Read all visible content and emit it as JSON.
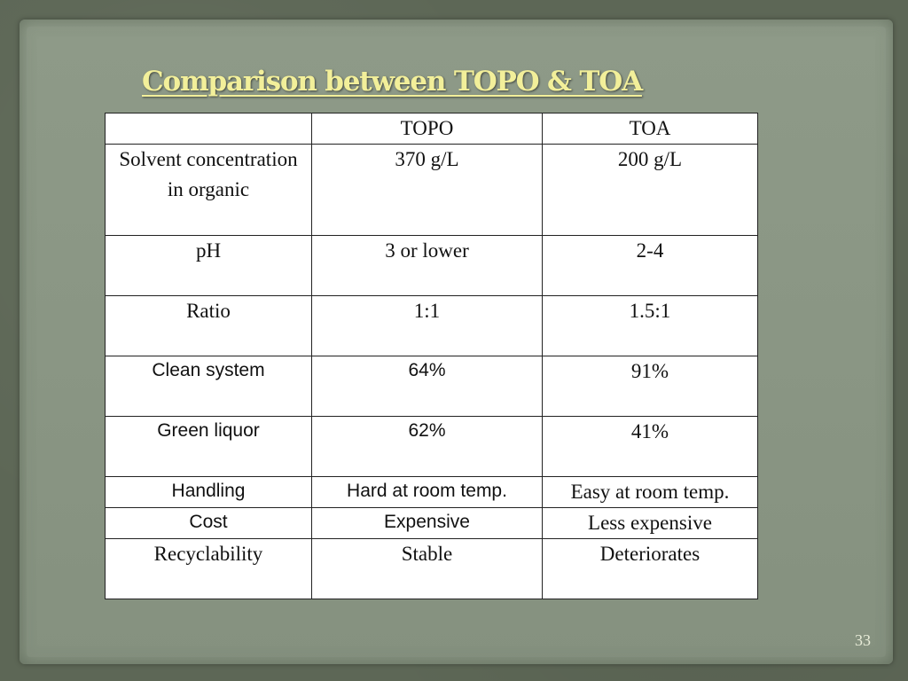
{
  "slide": {
    "title": "Comparison between TOPO & TOA",
    "page_number": "33"
  },
  "table": {
    "header": [
      "",
      "TOPO",
      "TOA"
    ],
    "rows": [
      {
        "label": "Solvent concentration in organic",
        "topo": "370 g/L",
        "toa": "200 g/L"
      },
      {
        "label": "pH",
        "topo": "3 or lower",
        "toa": "2-4"
      },
      {
        "label": "Ratio",
        "topo": "1:1",
        "toa": "1.5:1"
      },
      {
        "label": "Clean system",
        "topo": "64%",
        "toa": "91%"
      },
      {
        "label": "Green liquor",
        "topo": "62%",
        "toa": "41%"
      },
      {
        "label": "Handling",
        "topo": "Hard at room temp.",
        "toa": "Easy at room temp."
      },
      {
        "label": "Cost",
        "topo": "Expensive",
        "toa": "Less expensive"
      },
      {
        "label": "Recyclability",
        "topo": "Stable",
        "toa": "Deteriorates"
      }
    ]
  },
  "colors": {
    "background": "#5d6756",
    "paper": "#8a9684",
    "title": "#f2ef9a",
    "table_bg": "#ffffff"
  }
}
